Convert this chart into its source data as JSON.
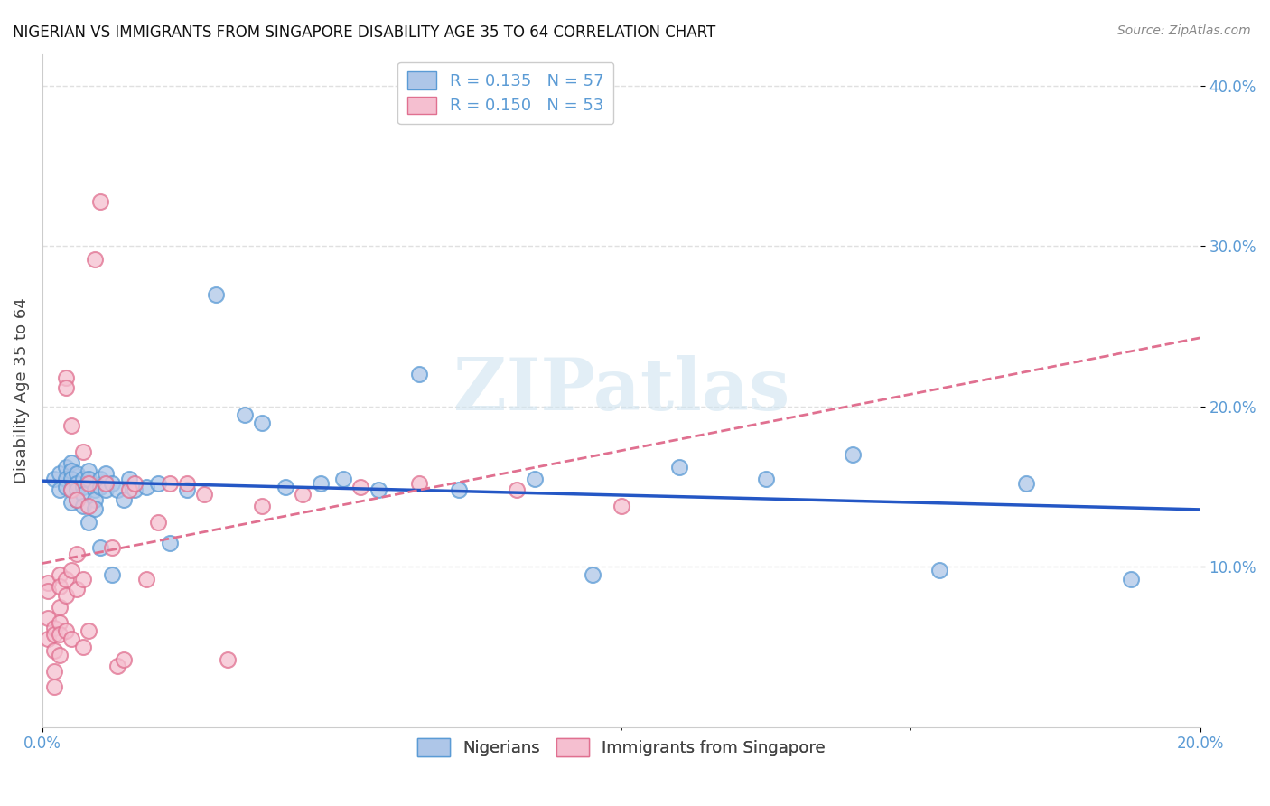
{
  "title": "NIGERIAN VS IMMIGRANTS FROM SINGAPORE DISABILITY AGE 35 TO 64 CORRELATION CHART",
  "source": "Source: ZipAtlas.com",
  "ylabel": "Disability Age 35 to 64",
  "xlim": [
    0.0,
    0.2
  ],
  "ylim": [
    0.0,
    0.42
  ],
  "yticks": [
    0.1,
    0.2,
    0.3,
    0.4
  ],
  "ytick_labels": [
    "10.0%",
    "20.0%",
    "30.0%",
    "40.0%"
  ],
  "xtick_left_label": "0.0%",
  "xtick_right_label": "20.0%",
  "nigerian_color": "#aec6e8",
  "nigerian_edge_color": "#5b9bd5",
  "singapore_color": "#f5bfd0",
  "singapore_edge_color": "#e07090",
  "nigerian_line_color": "#2457c5",
  "singapore_line_color": "#e07090",
  "nigerian_R": 0.135,
  "nigerian_N": 57,
  "singapore_R": 0.15,
  "singapore_N": 53,
  "legend_label_nigerian": "Nigerians",
  "legend_label_singapore": "Immigrants from Singapore",
  "background_color": "#ffffff",
  "grid_color": "#e0e0e0",
  "watermark": "ZIPatlas",
  "axis_label_color": "#5b9bd5",
  "nigerian_x": [
    0.002,
    0.003,
    0.003,
    0.004,
    0.004,
    0.004,
    0.005,
    0.005,
    0.005,
    0.005,
    0.005,
    0.006,
    0.006,
    0.006,
    0.006,
    0.007,
    0.007,
    0.007,
    0.007,
    0.008,
    0.008,
    0.008,
    0.009,
    0.009,
    0.009,
    0.01,
    0.01,
    0.01,
    0.011,
    0.011,
    0.012,
    0.012,
    0.013,
    0.014,
    0.015,
    0.016,
    0.018,
    0.02,
    0.022,
    0.025,
    0.03,
    0.035,
    0.038,
    0.042,
    0.048,
    0.052,
    0.058,
    0.065,
    0.072,
    0.085,
    0.095,
    0.11,
    0.125,
    0.14,
    0.155,
    0.17,
    0.188
  ],
  "nigerian_y": [
    0.155,
    0.158,
    0.148,
    0.162,
    0.155,
    0.15,
    0.165,
    0.16,
    0.155,
    0.148,
    0.14,
    0.158,
    0.152,
    0.148,
    0.142,
    0.155,
    0.15,
    0.145,
    0.138,
    0.16,
    0.155,
    0.128,
    0.148,
    0.142,
    0.136,
    0.155,
    0.15,
    0.112,
    0.158,
    0.148,
    0.152,
    0.095,
    0.148,
    0.142,
    0.155,
    0.148,
    0.15,
    0.152,
    0.115,
    0.148,
    0.27,
    0.195,
    0.19,
    0.15,
    0.152,
    0.155,
    0.148,
    0.22,
    0.148,
    0.155,
    0.095,
    0.162,
    0.155,
    0.17,
    0.098,
    0.152,
    0.092
  ],
  "singapore_x": [
    0.001,
    0.001,
    0.001,
    0.001,
    0.002,
    0.002,
    0.002,
    0.002,
    0.002,
    0.003,
    0.003,
    0.003,
    0.003,
    0.003,
    0.003,
    0.004,
    0.004,
    0.004,
    0.004,
    0.004,
    0.005,
    0.005,
    0.005,
    0.005,
    0.006,
    0.006,
    0.006,
    0.007,
    0.007,
    0.007,
    0.008,
    0.008,
    0.008,
    0.009,
    0.01,
    0.011,
    0.012,
    0.013,
    0.014,
    0.015,
    0.016,
    0.018,
    0.02,
    0.022,
    0.025,
    0.028,
    0.032,
    0.038,
    0.045,
    0.055,
    0.065,
    0.082,
    0.1
  ],
  "singapore_y": [
    0.09,
    0.085,
    0.068,
    0.055,
    0.062,
    0.058,
    0.048,
    0.035,
    0.025,
    0.095,
    0.088,
    0.065,
    0.058,
    0.075,
    0.045,
    0.218,
    0.212,
    0.092,
    0.082,
    0.06,
    0.188,
    0.148,
    0.098,
    0.055,
    0.142,
    0.108,
    0.086,
    0.172,
    0.092,
    0.05,
    0.152,
    0.138,
    0.06,
    0.292,
    0.328,
    0.152,
    0.112,
    0.038,
    0.042,
    0.148,
    0.152,
    0.092,
    0.128,
    0.152,
    0.152,
    0.145,
    0.042,
    0.138,
    0.145,
    0.15,
    0.152,
    0.148,
    0.138
  ]
}
